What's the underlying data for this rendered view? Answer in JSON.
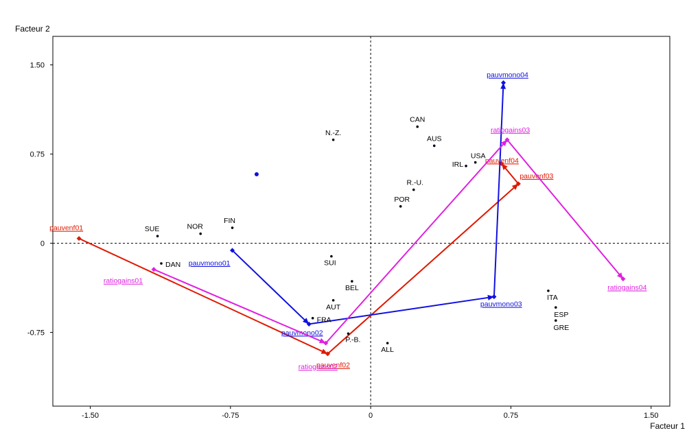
{
  "chart_data": {
    "type": "scatter",
    "title": "",
    "xlabel": "Facteur 1",
    "ylabel": "Facteur 2",
    "xlim": [
      -1.7,
      1.6
    ],
    "ylim": [
      -1.37,
      1.74
    ],
    "x_ticks": [
      -1.5,
      -0.75,
      0,
      0.75,
      1.5
    ],
    "x_tick_labels": [
      "-1.50",
      "-0.75",
      "0",
      "0.75",
      "1.50"
    ],
    "y_ticks": [
      -0.75,
      0,
      0.75,
      1.5
    ],
    "y_tick_labels": [
      "-0.75",
      "0",
      "0.75",
      "1.50"
    ],
    "reference_lines": {
      "x": 0,
      "y": 0,
      "style": "dotted"
    },
    "points": [
      {
        "label": "CAN",
        "x": 0.25,
        "y": 0.98
      },
      {
        "label": "AUS",
        "x": 0.34,
        "y": 0.82
      },
      {
        "label": "N.-Z.",
        "x": -0.2,
        "y": 0.87
      },
      {
        "label": "IRL",
        "x": 0.51,
        "y": 0.65
      },
      {
        "label": "USA",
        "x": 0.56,
        "y": 0.68
      },
      {
        "label": "R.-U.",
        "x": 0.23,
        "y": 0.45
      },
      {
        "label": "POR",
        "x": 0.16,
        "y": 0.31
      },
      {
        "label": "FIN",
        "x": -0.74,
        "y": 0.13
      },
      {
        "label": "NOR",
        "x": -0.91,
        "y": 0.08
      },
      {
        "label": "SUE",
        "x": -1.14,
        "y": 0.06
      },
      {
        "label": "DAN",
        "x": -1.12,
        "y": -0.17
      },
      {
        "label": "SUI",
        "x": -0.21,
        "y": -0.11
      },
      {
        "label": "BEL",
        "x": -0.1,
        "y": -0.32
      },
      {
        "label": "AUT",
        "x": -0.2,
        "y": -0.48
      },
      {
        "label": "FRA",
        "x": -0.31,
        "y": -0.63
      },
      {
        "label": "P.-B.",
        "x": -0.12,
        "y": -0.76
      },
      {
        "label": "ALL",
        "x": 0.09,
        "y": -0.84
      },
      {
        "label": "ITA",
        "x": 0.95,
        "y": -0.4
      },
      {
        "label": "ESP",
        "x": 0.99,
        "y": -0.54
      },
      {
        "label": "GRE",
        "x": 0.99,
        "y": -0.65
      },
      {
        "label": "",
        "x": -0.61,
        "y": 0.58
      }
    ],
    "series": [
      {
        "name": "pauvenf",
        "color": "#e01800",
        "points": [
          {
            "label": "pauvenf01",
            "x": -1.56,
            "y": 0.04
          },
          {
            "label": "pauvenf02",
            "x": -0.23,
            "y": -0.93
          },
          {
            "label": "pauvenf03",
            "x": 0.79,
            "y": 0.5
          },
          {
            "label": "pauvenf04",
            "x": 0.7,
            "y": 0.67
          }
        ]
      },
      {
        "name": "pauvmono",
        "color": "#1010e0",
        "points": [
          {
            "label": "pauvmono01",
            "x": -0.74,
            "y": -0.06
          },
          {
            "label": "pauvmono02",
            "x": -0.33,
            "y": -0.68
          },
          {
            "label": "pauvmono03",
            "x": 0.66,
            "y": -0.45
          },
          {
            "label": "pauvmono04",
            "x": 0.71,
            "y": 1.35
          }
        ]
      },
      {
        "name": "ratiogains",
        "color": "#e020e0",
        "points": [
          {
            "label": "ratiogains01",
            "x": -1.16,
            "y": -0.22
          },
          {
            "label": "ratiogains02",
            "x": -0.24,
            "y": -0.84
          },
          {
            "label": "ratiogains03",
            "x": 0.73,
            "y": 0.87
          },
          {
            "label": "ratiogains04",
            "x": 1.35,
            "y": -0.3
          }
        ]
      }
    ]
  }
}
